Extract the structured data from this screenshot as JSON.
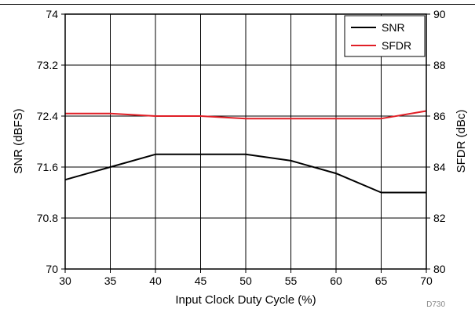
{
  "chart_data": {
    "type": "line",
    "x": [
      30,
      35,
      40,
      45,
      50,
      55,
      60,
      65,
      70
    ],
    "series": [
      {
        "name": "SNR",
        "axis": "left",
        "color": "#000000",
        "values": [
          71.4,
          71.6,
          71.8,
          71.8,
          71.8,
          71.7,
          71.5,
          71.2,
          71.2
        ]
      },
      {
        "name": "SFDR",
        "axis": "right",
        "color": "#e01f26",
        "values": [
          86.1,
          86.1,
          86.0,
          86.0,
          85.9,
          85.9,
          85.9,
          85.9,
          86.2
        ]
      }
    ],
    "xlabel": "Input Clock Duty Cycle (%)",
    "ylabel": "SNR (dBFS)",
    "y2label": "SFDR (dBc)",
    "xlim": [
      30,
      70
    ],
    "ylim": [
      70,
      74
    ],
    "y2lim": [
      80,
      90
    ],
    "x_ticks": [
      "30",
      "35",
      "40",
      "45",
      "50",
      "55",
      "60",
      "65",
      "70"
    ],
    "y_ticks": [
      "70",
      "70.8",
      "71.6",
      "72.4",
      "73.2",
      "74"
    ],
    "y2_ticks": [
      "80",
      "82",
      "84",
      "86",
      "88",
      "90"
    ],
    "grid": true,
    "legend": "top-right",
    "footnote": "D730"
  }
}
